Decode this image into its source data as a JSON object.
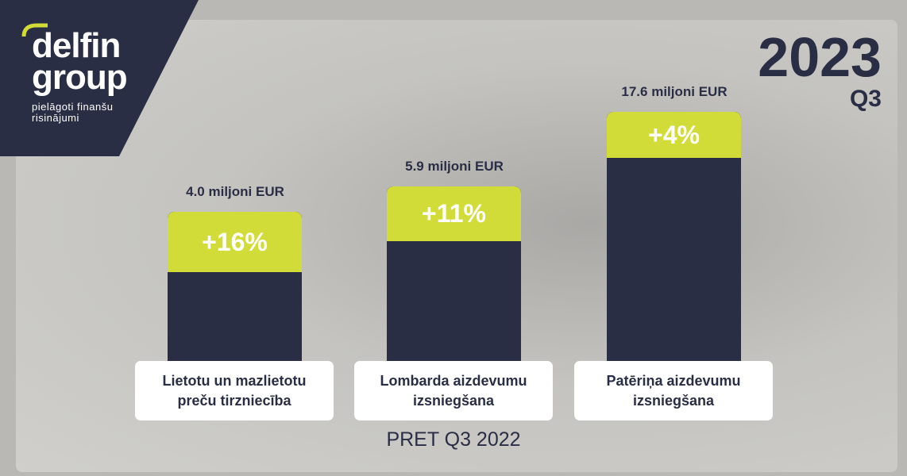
{
  "logo": {
    "name_line1": "delfin",
    "name_line2": "group",
    "tagline_line1": "pielāgoti finanšu",
    "tagline_line2": "risinājumi"
  },
  "period": {
    "year": "2023",
    "quarter": "Q3"
  },
  "segments": [
    {
      "amount": "4.0 miljoni EUR",
      "change": "+16%",
      "label_line1": "Lietotu un mazlietotu",
      "label_line2": "preču tirzniecība"
    },
    {
      "amount": "5.9 miljoni EUR",
      "change": "+11%",
      "label_line1": "Lombarda aizdevumu",
      "label_line2": "izsniegšana"
    },
    {
      "amount": "17.6 miljoni EUR",
      "change": "+4%",
      "label_line1": "Patēriņa aizdevumu",
      "label_line2": "izsniegšana"
    }
  ],
  "footer": "PRET Q3 2022"
}
